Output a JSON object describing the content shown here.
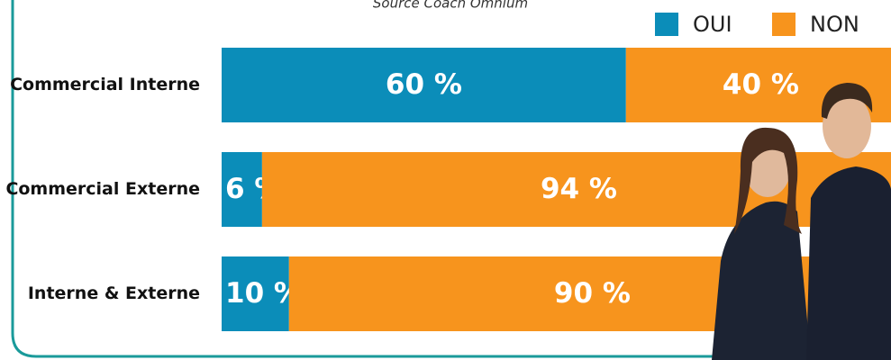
{
  "chart_data": {
    "type": "stacked-bar-horizontal",
    "subtitle": "Source Coach Omnium",
    "categories": [
      "Commercial Interne",
      "Commercial Externe",
      "Interne & Externe"
    ],
    "series": [
      {
        "name": "OUI",
        "color": "#0b8db9",
        "values": [
          60,
          6,
          10
        ],
        "value_labels": [
          "60 %",
          "6 %",
          "10 %"
        ]
      },
      {
        "name": "NON",
        "color": "#f7941d",
        "values": [
          40,
          94,
          90
        ],
        "value_labels": [
          "40 %",
          "94 %",
          "90 %"
        ]
      }
    ],
    "xlim": [
      0,
      100
    ],
    "legend": "top-right"
  }
}
